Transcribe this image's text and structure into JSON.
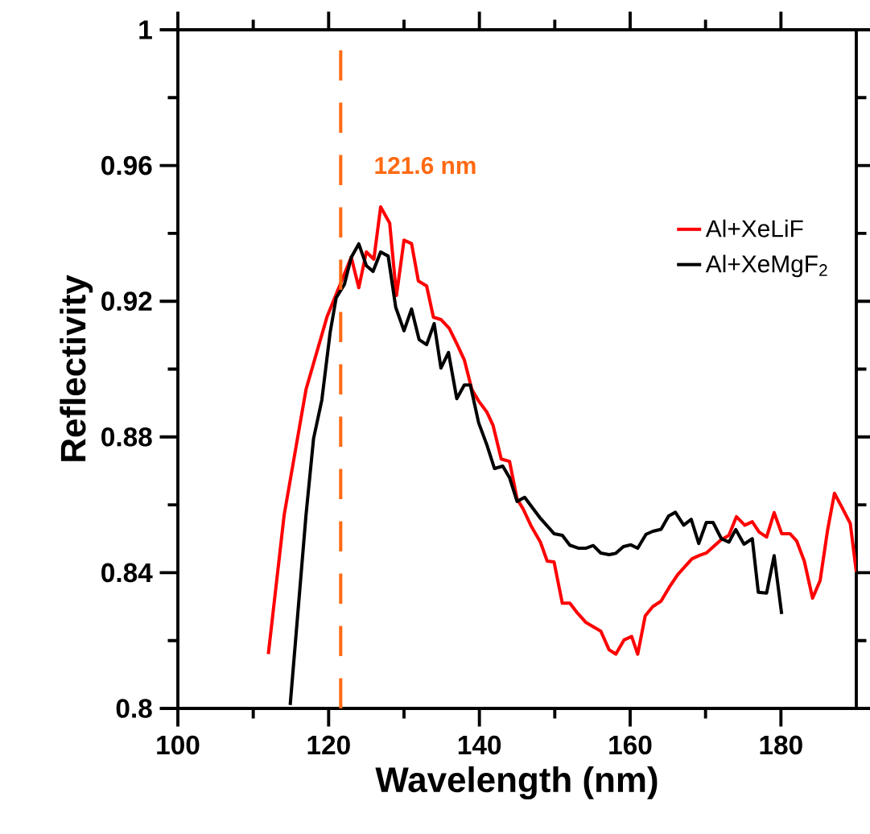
{
  "chart_data": {
    "type": "line",
    "xlabel": "Wavelength (nm)",
    "ylabel": "Reflectivity",
    "xlim": [
      100,
      190
    ],
    "ylim": [
      0.8,
      1.0
    ],
    "xticks": [
      100,
      120,
      140,
      160,
      180
    ],
    "yticks": [
      0.8,
      0.84,
      0.88,
      0.92,
      0.96,
      1
    ],
    "legend": "right",
    "grid": false,
    "ref_lines": [
      {
        "axis": "x",
        "value": 121.6,
        "label": "121.6 nm",
        "color": "#ff6a13",
        "line_style": "dashed"
      }
    ],
    "series": [
      {
        "name": "Al+XeLiF",
        "color": "#ff0000",
        "x": [
          112,
          114.1,
          117,
          119.8,
          123,
          124,
          125,
          126,
          126.9,
          128.1,
          129,
          130,
          131,
          131.9,
          133,
          133.9,
          134.9,
          136,
          137,
          138,
          139,
          139.9,
          141,
          141.8,
          142.9,
          144,
          145,
          145.8,
          146.9,
          148.1,
          149,
          149.9,
          151,
          152,
          152.9,
          154.1,
          155,
          156.1,
          157.2,
          158.1,
          159.2,
          160.2,
          161,
          162,
          163,
          164.1,
          165.3,
          166.3,
          168.2,
          169.2,
          170.1,
          172,
          173.1,
          174.1,
          175.2,
          176.2,
          177.1,
          178.1,
          179.1,
          180.1,
          181.2,
          182.1,
          183.1,
          184.2,
          185.2,
          186.2,
          187.1,
          188.2,
          189.2,
          190
        ],
        "values": [
          0.816,
          0.857,
          0.894,
          0.9155,
          0.933,
          0.924,
          0.9345,
          0.9324,
          0.9478,
          0.943,
          0.9217,
          0.938,
          0.937,
          0.926,
          0.9245,
          0.9153,
          0.9146,
          0.912,
          0.9075,
          0.9027,
          0.894,
          0.8906,
          0.8873,
          0.8835,
          0.8735,
          0.8728,
          0.8617,
          0.8588,
          0.8536,
          0.849,
          0.8434,
          0.8432,
          0.831,
          0.831,
          0.8284,
          0.8254,
          0.8242,
          0.8228,
          0.8173,
          0.816,
          0.8202,
          0.8212,
          0.816,
          0.8273,
          0.83,
          0.8316,
          0.8361,
          0.8394,
          0.8441,
          0.8451,
          0.8458,
          0.8496,
          0.851,
          0.8565,
          0.854,
          0.855,
          0.852,
          0.8505,
          0.8577,
          0.8515,
          0.8515,
          0.8493,
          0.8434,
          0.8325,
          0.8377,
          0.8527,
          0.8634,
          0.8588,
          0.8545,
          0.8403
        ]
      },
      {
        "name": "Al+XeMgF$_{2}$",
        "color": "#000000",
        "x": [
          114.9,
          117,
          118,
          119.1,
          120.2,
          121,
          122.1,
          123,
          124,
          125,
          125.9,
          126.9,
          127.9,
          128.9,
          130,
          131,
          132,
          133,
          134,
          134.9,
          135.9,
          137,
          138,
          138.8,
          139.9,
          141,
          142,
          143.1,
          144,
          145,
          146,
          148.1,
          149.9,
          151,
          152,
          153.2,
          154.1,
          155.1,
          156.1,
          157.2,
          158.1,
          159.1,
          160.1,
          161,
          162.1,
          163,
          164.1,
          165.1,
          166,
          167.1,
          168.1,
          169.1,
          170.1,
          171,
          172.1,
          173.1,
          174,
          175.1,
          176.2,
          177,
          178.1,
          179.1,
          180.1
        ],
        "values": [
          0.801,
          0.857,
          0.8795,
          0.8909,
          0.9108,
          0.921,
          0.925,
          0.9329,
          0.9369,
          0.9305,
          0.9288,
          0.9345,
          0.9333,
          0.9182,
          0.9113,
          0.9177,
          0.9087,
          0.9072,
          0.9134,
          0.9003,
          0.9049,
          0.8913,
          0.8953,
          0.8953,
          0.8842,
          0.8776,
          0.8707,
          0.8714,
          0.868,
          0.861,
          0.8622,
          0.856,
          0.8515,
          0.851,
          0.8481,
          0.8472,
          0.8472,
          0.848,
          0.8458,
          0.8453,
          0.8457,
          0.8477,
          0.8482,
          0.8472,
          0.8513,
          0.8522,
          0.8528,
          0.8567,
          0.8578,
          0.854,
          0.8557,
          0.8486,
          0.8548,
          0.8548,
          0.85,
          0.849,
          0.8527,
          0.8484,
          0.85,
          0.8342,
          0.834,
          0.845,
          0.8278
        ]
      }
    ]
  }
}
